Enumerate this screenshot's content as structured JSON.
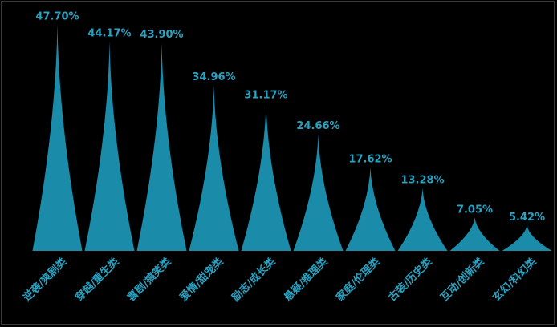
{
  "chart_data": {
    "type": "bar",
    "bar_shape": "pictorial-spike",
    "categories": [
      "逆袭/爽剧类",
      "穿越/重生类",
      "喜剧/搞笑类",
      "爱情/甜宠类",
      "励志/成长类",
      "悬疑/推理类",
      "家庭/伦理类",
      "古装/历史类",
      "互动/创新类",
      "玄幻/科幻类"
    ],
    "values": [
      47.7,
      44.17,
      43.9,
      34.96,
      31.17,
      24.66,
      17.62,
      13.28,
      7.05,
      5.42
    ],
    "value_labels": [
      "47.70%",
      "44.17%",
      "43.90%",
      "34.96%",
      "31.17%",
      "24.66%",
      "17.62%",
      "13.28%",
      "7.05%",
      "5.42%"
    ],
    "ylim": [
      0,
      50
    ],
    "grid": false,
    "legend": "none",
    "colors": {
      "bar": "#1a8ba8",
      "label": "#2aa3c2",
      "background": "#000000"
    }
  }
}
